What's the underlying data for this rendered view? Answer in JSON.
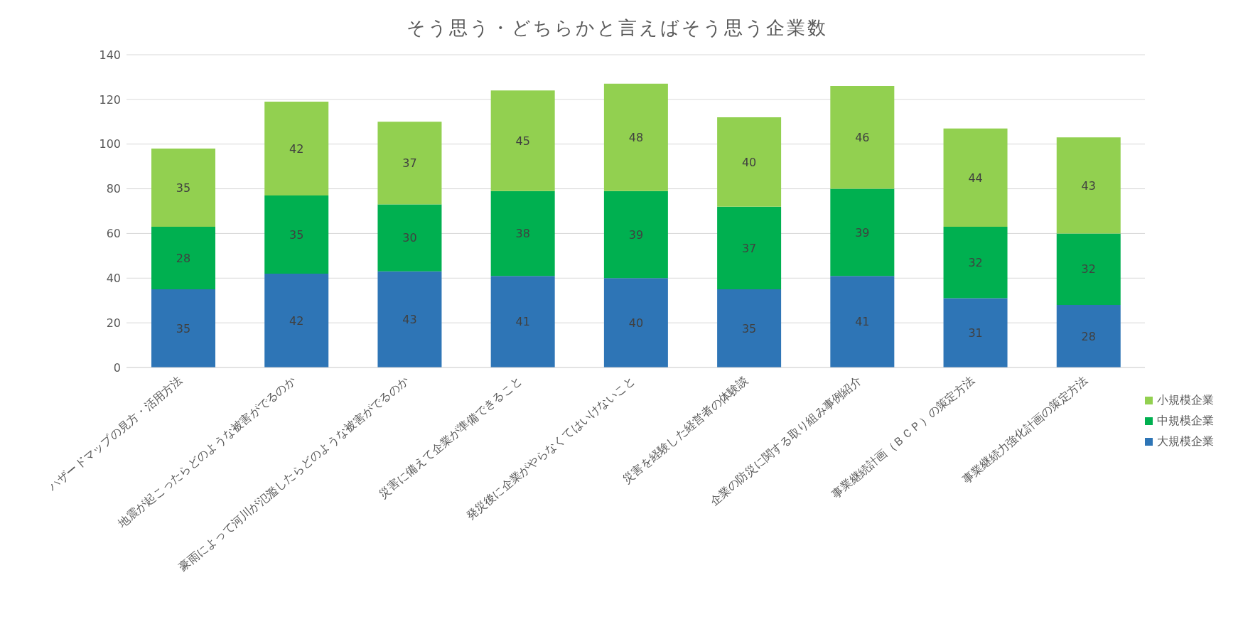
{
  "chart_data": {
    "type": "bar",
    "title": "そう思う・どちらかと言えばそう思う企業数",
    "categories": [
      "ハザードマップの見方・活用方法",
      "地震が起こったらどのような被害がでるのか",
      "豪雨によって河川が氾濫したらどのような被害がでるのか",
      "災害に備えて企業が準備できること",
      "発災後に企業がやらなくてはいけないこと",
      "災害を経験した経営者の体験談",
      "企業の防災に関する取り組み事例紹介",
      "事業継続計画（ＢＣＰ）の策定方法",
      "事業継続力強化計画の策定方法"
    ],
    "series": [
      {
        "name": "大規模企業",
        "color": "#2e75b6",
        "values": [
          35,
          42,
          43,
          41,
          40,
          35,
          41,
          31,
          28
        ]
      },
      {
        "name": "中規模企業",
        "color": "#00b050",
        "values": [
          28,
          35,
          30,
          38,
          39,
          37,
          39,
          32,
          32
        ]
      },
      {
        "name": "小規模企業",
        "color": "#92d050",
        "values": [
          35,
          42,
          37,
          45,
          48,
          40,
          46,
          44,
          43
        ]
      }
    ],
    "stacked": true,
    "ylim": [
      0,
      140
    ],
    "yticks": [
      0,
      20,
      40,
      60,
      80,
      100,
      120,
      140
    ],
    "grid": "y",
    "legend": "right",
    "data_labels": true
  }
}
